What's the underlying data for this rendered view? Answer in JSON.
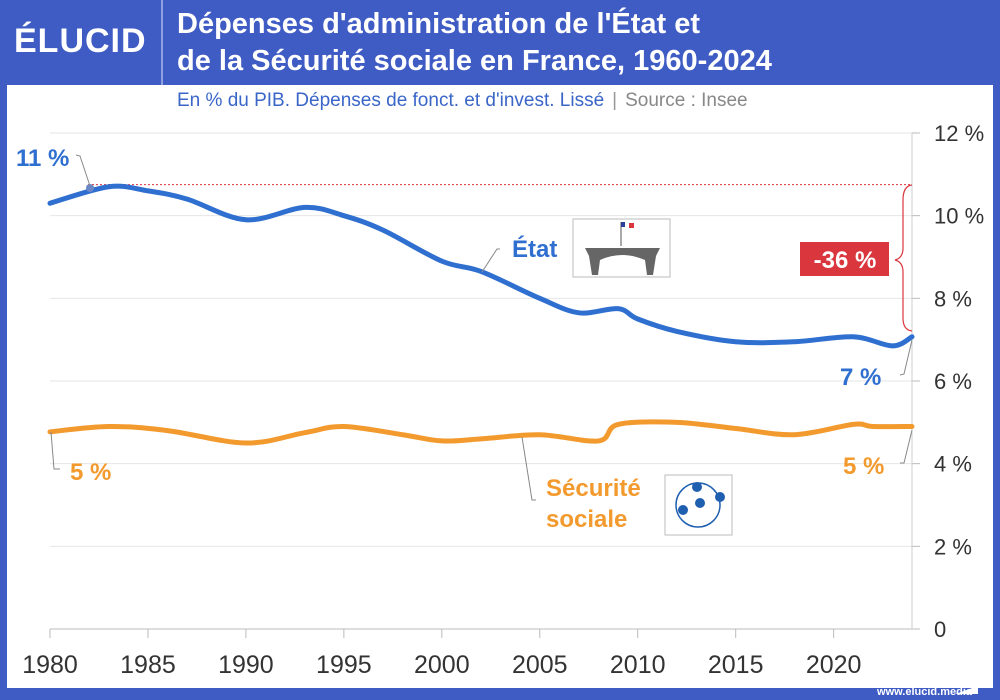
{
  "header": {
    "logo": "ÉLUCID",
    "title_line1": "Dépenses d'administration de l'État et",
    "title_line2": "de la Sécurité sociale en France, 1960-2024",
    "subtitle": "En % du PIB. Dépenses de fonct. et d'invest. Lissé",
    "source": "Source : Insee"
  },
  "footer": {
    "url": "www.elucid.media"
  },
  "colors": {
    "brand": "#3f5bc4",
    "etat": "#2f6fd0",
    "secu": "#f39a2e",
    "highlight": "#d9363e"
  },
  "chart_data": {
    "type": "line",
    "xlim": [
      1980,
      2024
    ],
    "ylim": [
      0,
      12
    ],
    "x_ticks": [
      "1980",
      "1985",
      "1990",
      "1995",
      "2000",
      "2005",
      "2010",
      "2015",
      "2020"
    ],
    "y_ticks": [
      "0",
      "2 %",
      "4 %",
      "6 %",
      "8 %",
      "10 %",
      "12 %"
    ],
    "y_axis_position": "right",
    "grid": true,
    "series": [
      {
        "name": "État",
        "icon": "state-building-icon",
        "x": [
          1980,
          1983,
          1985,
          1987,
          1990,
          1993,
          1995,
          1997,
          2000,
          2002,
          2005,
          2007,
          2009,
          2010,
          2012,
          2015,
          2018,
          2021,
          2023,
          2024
        ],
        "values": [
          10.3,
          10.7,
          10.6,
          10.4,
          9.9,
          10.2,
          10.0,
          9.65,
          8.9,
          8.65,
          8.0,
          7.65,
          7.75,
          7.5,
          7.2,
          6.95,
          6.95,
          7.07,
          6.85,
          7.07
        ]
      },
      {
        "name": "Sécurité sociale",
        "icon": "securite-sociale-logo-icon",
        "x": [
          1980,
          1983,
          1986,
          1990,
          1993,
          1995,
          1998,
          2000,
          2002,
          2005,
          2008,
          2009,
          2012,
          2015,
          2018,
          2021,
          2022,
          2024
        ],
        "values": [
          4.77,
          4.9,
          4.8,
          4.5,
          4.75,
          4.9,
          4.7,
          4.55,
          4.6,
          4.7,
          4.55,
          4.95,
          5.0,
          4.85,
          4.7,
          4.95,
          4.9,
          4.9
        ]
      }
    ],
    "annotations": {
      "etat_start": "11 %",
      "etat_end": "7 %",
      "secu_start": "5 %",
      "secu_end": "5 %",
      "change": "-36 %",
      "peak_reference": 10.75
    }
  }
}
